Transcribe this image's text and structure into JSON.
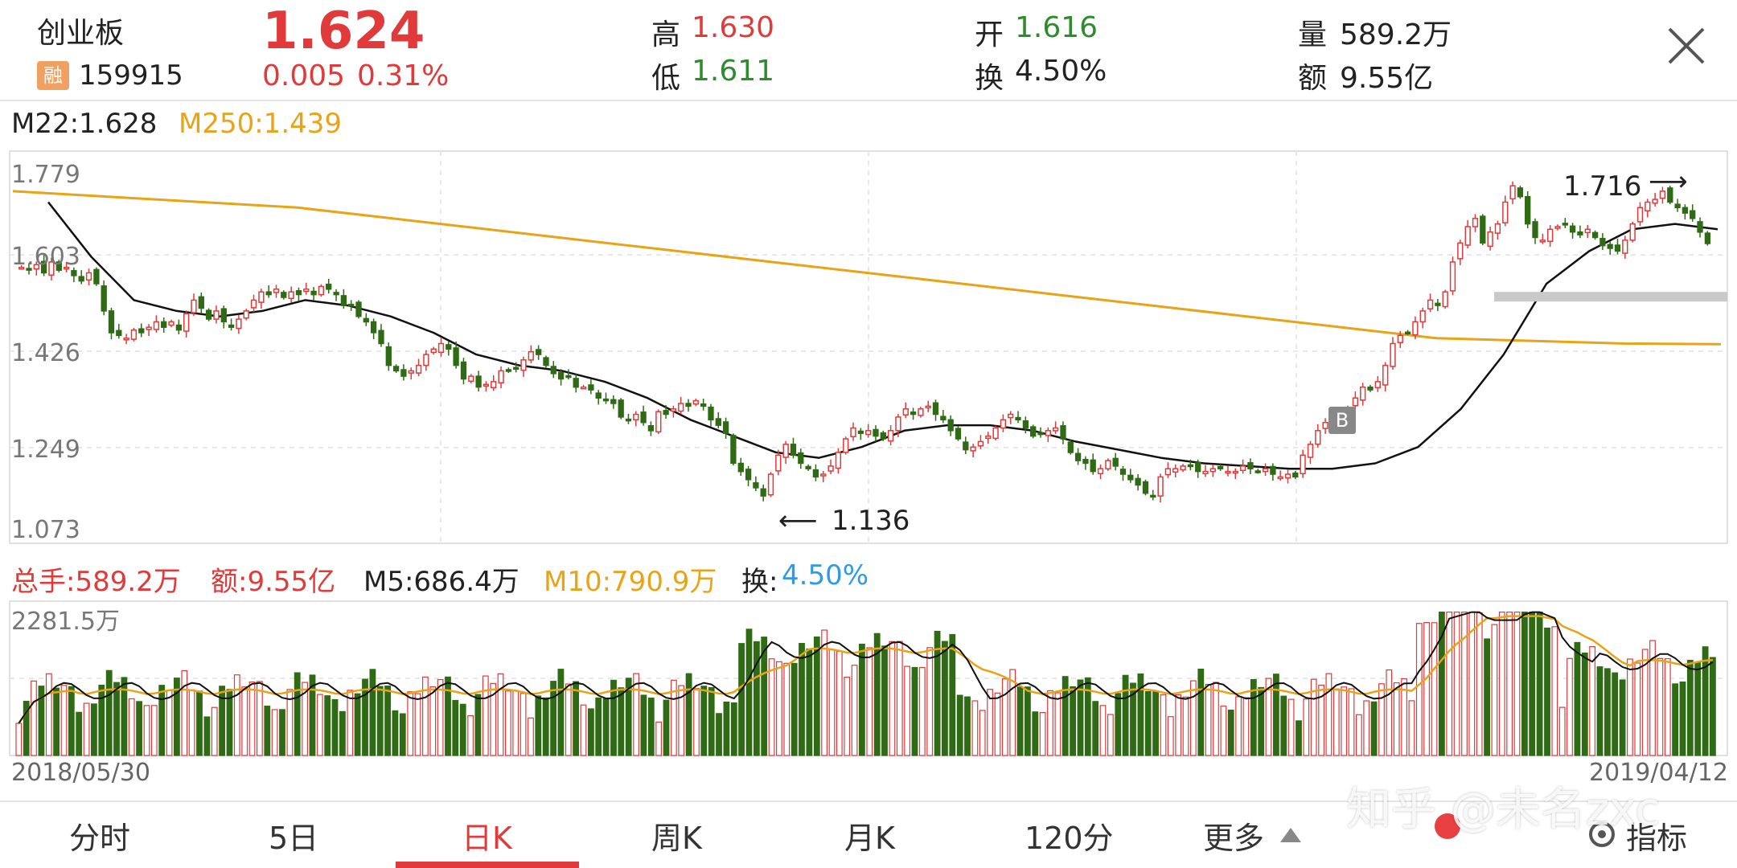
{
  "header": {
    "name": "创业板",
    "margin_badge": "融",
    "code": "159915",
    "price": "1.624",
    "change": "0.005",
    "change_pct": "0.31%",
    "high_label": "高",
    "high": "1.630",
    "low_label": "低",
    "low": "1.611",
    "open_label": "开",
    "open": "1.616",
    "turnover_label": "换",
    "turnover": "4.50%",
    "volume_label": "量",
    "volume": "589.2万",
    "amount_label": "额",
    "amount": "9.55亿"
  },
  "ma_legend": {
    "m22": "M22:1.628",
    "m250": "M250:1.439"
  },
  "price_axis": {
    "ticks": [
      "1.779",
      "1.603",
      "1.426",
      "1.249",
      "1.073"
    ]
  },
  "annotations": {
    "low_text": "1.136",
    "high_text": "1.716",
    "buy_marker": "B"
  },
  "volume_legend": {
    "total_hand": "总手:589.2万",
    "amount": "额:9.55亿",
    "m5": "M5:686.4万",
    "m10": "M10:790.9万",
    "turnover_label": "换:",
    "turnover_value": "4.50%"
  },
  "volume_axis": {
    "max": "2281.5万"
  },
  "date_range": {
    "start": "2018/05/30",
    "end": "2019/04/12"
  },
  "tabs": [
    {
      "label": "分时"
    },
    {
      "label": "5日"
    },
    {
      "label": "日K"
    },
    {
      "label": "周K"
    },
    {
      "label": "月K"
    },
    {
      "label": "120分"
    },
    {
      "label": "更多"
    },
    {
      "label": "指标"
    }
  ],
  "active_tab": "日K",
  "watermark": "知乎 @未名zxc",
  "colors": {
    "up": "#e03a3a",
    "down": "#2e6b14",
    "ma22": "#111111",
    "ma250": "#e8a317",
    "grid": "#e0e0e0"
  },
  "chart_data": {
    "type": "candlestick",
    "x_start": "2018/05/30",
    "x_end": "2019/04/12",
    "ylim": [
      1.073,
      1.779
    ],
    "yticks": [
      1.779,
      1.603,
      1.426,
      1.249,
      1.073
    ],
    "close": [
      1.58,
      1.575,
      1.585,
      1.57,
      1.59,
      1.575,
      1.58,
      1.565,
      1.555,
      1.57,
      1.55,
      1.5,
      1.46,
      1.455,
      1.45,
      1.465,
      1.46,
      1.47,
      1.48,
      1.47,
      1.48,
      1.465,
      1.495,
      1.52,
      1.505,
      1.485,
      1.5,
      1.48,
      1.47,
      1.485,
      1.5,
      1.52,
      1.535,
      1.53,
      1.54,
      1.525,
      1.535,
      1.53,
      1.54,
      1.53,
      1.545,
      1.54,
      1.53,
      1.51,
      1.51,
      1.49,
      1.48,
      1.46,
      1.44,
      1.4,
      1.39,
      1.38,
      1.39,
      1.4,
      1.42,
      1.43,
      1.44,
      1.43,
      1.4,
      1.375,
      1.38,
      1.36,
      1.365,
      1.37,
      1.39,
      1.39,
      1.395,
      1.41,
      1.425,
      1.42,
      1.4,
      1.385,
      1.375,
      1.38,
      1.36,
      1.36,
      1.355,
      1.34,
      1.335,
      1.33,
      1.305,
      1.3,
      1.31,
      1.295,
      1.28,
      1.315,
      1.31,
      1.32,
      1.33,
      1.325,
      1.335,
      1.325,
      1.3,
      1.29,
      1.275,
      1.22,
      1.205,
      1.19,
      1.175,
      1.16,
      1.2,
      1.235,
      1.255,
      1.235,
      1.22,
      1.21,
      1.195,
      1.2,
      1.215,
      1.24,
      1.265,
      1.285,
      1.275,
      1.28,
      1.27,
      1.265,
      1.28,
      1.305,
      1.32,
      1.31,
      1.32,
      1.325,
      1.31,
      1.3,
      1.28,
      1.265,
      1.245,
      1.25,
      1.26,
      1.27,
      1.285,
      1.3,
      1.31,
      1.3,
      1.285,
      1.27,
      1.275,
      1.28,
      1.285,
      1.265,
      1.24,
      1.225,
      1.22,
      1.205,
      1.21,
      1.225,
      1.215,
      1.2,
      1.19,
      1.18,
      1.165,
      1.16,
      1.195,
      1.21,
      1.21,
      1.215,
      1.215,
      1.205,
      1.205,
      1.21,
      1.21,
      1.205,
      1.205,
      1.215,
      1.21,
      1.205,
      1.21,
      1.2,
      1.195,
      1.2,
      1.195,
      1.235,
      1.255,
      1.28,
      1.295,
      1.3,
      1.31,
      1.32,
      1.34,
      1.36,
      1.355,
      1.37,
      1.4,
      1.44,
      1.455,
      1.46,
      1.48,
      1.5,
      1.52,
      1.51,
      1.535,
      1.59,
      1.625,
      1.655,
      1.67,
      1.625,
      1.645,
      1.66,
      1.7,
      1.73,
      1.71,
      1.66,
      1.635,
      1.63,
      1.65,
      1.655,
      1.66,
      1.645,
      1.64,
      1.65,
      1.635,
      1.62,
      1.615,
      1.61,
      1.63,
      1.66,
      1.69,
      1.7,
      1.705,
      1.72,
      1.7,
      1.69,
      1.68,
      1.67,
      1.645,
      1.624
    ],
    "ma22_approx": [
      1.7,
      1.6,
      1.52,
      1.5,
      1.49,
      1.5,
      1.52,
      1.51,
      1.49,
      1.46,
      1.42,
      1.4,
      1.39,
      1.37,
      1.34,
      1.3,
      1.27,
      1.24,
      1.23,
      1.25,
      1.28,
      1.29,
      1.29,
      1.28,
      1.26,
      1.245,
      1.23,
      1.22,
      1.215,
      1.21,
      1.21,
      1.22,
      1.25,
      1.32,
      1.42,
      1.55,
      1.61,
      1.65,
      1.66,
      1.65
    ],
    "ma250_approx": [
      1.72,
      1.71,
      1.7,
      1.69,
      1.67,
      1.65,
      1.63,
      1.61,
      1.59,
      1.57,
      1.55,
      1.53,
      1.51,
      1.49,
      1.47,
      1.45,
      1.445,
      1.44,
      1.439
    ],
    "annotations": [
      {
        "label": "1.136",
        "kind": "period low"
      },
      {
        "label": "1.716",
        "kind": "period high"
      }
    ],
    "volume": {
      "type": "bar",
      "max_label": "2281.5万",
      "series_names": [
        "M5",
        "M10"
      ]
    }
  }
}
